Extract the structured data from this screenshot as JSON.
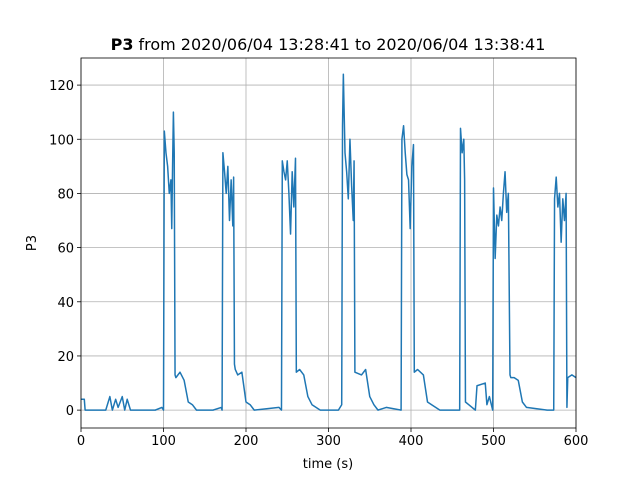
{
  "chart_data": {
    "type": "line",
    "title_bold": "P3",
    "title": "from 2020/06/04 13:28:41 to 2020/06/04 13:38:41",
    "x_label": "time (s)",
    "y_label": "P3",
    "xlim": [
      0,
      600
    ],
    "ylim": [
      -6.6,
      130
    ],
    "xticks": [
      0,
      100,
      200,
      300,
      400,
      500,
      600
    ],
    "yticks": [
      0,
      20,
      40,
      60,
      80,
      100,
      120
    ],
    "grid": true,
    "series": [
      {
        "color": "#1f77b4",
        "x": [
          0,
          4,
          5,
          30,
          35,
          38,
          42,
          45,
          50,
          53,
          56,
          60,
          90,
          98,
          100,
          101,
          103,
          105,
          107,
          109,
          110,
          111,
          112,
          113,
          114,
          115,
          120,
          125,
          130,
          135,
          140,
          160,
          170,
          171,
          172,
          174,
          176,
          178,
          180,
          182,
          184,
          185,
          186,
          187,
          190,
          195,
          200,
          205,
          210,
          240,
          243,
          244,
          246,
          248,
          250,
          252,
          254,
          256,
          258,
          260,
          261,
          265,
          270,
          275,
          280,
          290,
          312,
          316,
          317,
          318,
          320,
          322,
          324,
          326,
          328,
          330,
          331,
          332,
          340,
          345,
          350,
          355,
          360,
          370,
          388,
          389,
          391,
          393,
          395,
          397,
          399,
          401,
          403,
          404,
          408,
          415,
          420,
          425,
          435,
          459,
          460,
          462,
          464,
          465,
          466,
          470,
          478,
          480,
          490,
          492,
          495,
          499,
          500,
          502,
          504,
          506,
          508,
          510,
          512,
          514,
          516,
          518,
          520,
          521,
          525,
          530,
          535,
          540,
          565,
          573,
          574,
          576,
          578,
          580,
          582,
          584,
          586,
          588,
          589,
          590,
          595,
          600
        ],
        "values": [
          4,
          4,
          0,
          0,
          5,
          0,
          4,
          1,
          5,
          0,
          4,
          0,
          0,
          1,
          0,
          103,
          95,
          90,
          80,
          85,
          67,
          90,
          110,
          95,
          13,
          12,
          14,
          11,
          3,
          2,
          0,
          0,
          1,
          0,
          95,
          88,
          80,
          90,
          70,
          85,
          68,
          86,
          17,
          15,
          13,
          14,
          3,
          2,
          0,
          1,
          0,
          92,
          88,
          85,
          92,
          80,
          65,
          88,
          75,
          93,
          14,
          15,
          13,
          5,
          2,
          0,
          0,
          2,
          105,
          124,
          95,
          88,
          78,
          100,
          83,
          70,
          92,
          14,
          13,
          15,
          5,
          2,
          0,
          1,
          0,
          100,
          105,
          95,
          87,
          85,
          67,
          90,
          98,
          14,
          15,
          13,
          3,
          2,
          0,
          0,
          104,
          95,
          100,
          85,
          3,
          2,
          0,
          9,
          10,
          2,
          5,
          0,
          82,
          56,
          72,
          68,
          75,
          70,
          80,
          88,
          73,
          80,
          13,
          12,
          12,
          11,
          3,
          1,
          0,
          0,
          78,
          86,
          75,
          80,
          62,
          78,
          70,
          80,
          1,
          12,
          13,
          12
        ]
      }
    ]
  }
}
